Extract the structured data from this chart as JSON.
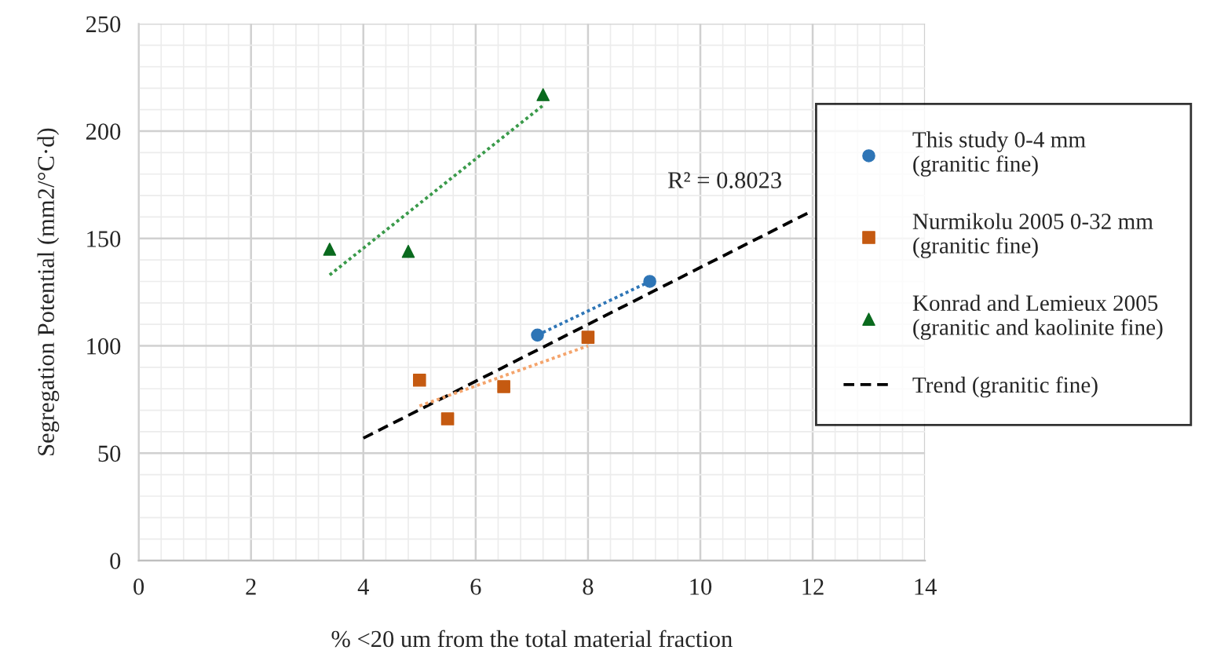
{
  "chart_data": {
    "type": "scatter",
    "xlabel": "% <20 um from the total material fraction",
    "ylabel": "Segregation Potential (mm2/°C·d)",
    "xlim": [
      0,
      14
    ],
    "xticks": [
      0,
      2,
      4,
      6,
      8,
      10,
      12,
      14
    ],
    "ylim": [
      0,
      250
    ],
    "yticks": [
      0,
      50,
      100,
      150,
      200,
      250
    ],
    "grid": true,
    "legend": "right",
    "series": [
      {
        "name": "This study 0-4 mm\n(granitic fine)",
        "marker": "circle",
        "color": "#2e75b6",
        "x": [
          7.1,
          9.1
        ],
        "values": [
          105,
          130
        ]
      },
      {
        "name": "Nurmikolu 2005 0-32 mm\n(granitic fine)",
        "marker": "square",
        "color": "#c55a11",
        "x": [
          5.0,
          5.5,
          6.5,
          8.0
        ],
        "values": [
          84,
          66,
          81,
          104
        ]
      },
      {
        "name": "Konrad and Lemieux 2005\n(granitic and kaolinite fine)",
        "marker": "triangle",
        "color": "#0a6a1e",
        "x": [
          3.4,
          4.8,
          7.2
        ],
        "values": [
          145,
          144,
          217
        ]
      },
      {
        "name": "Trend (granitic fine)",
        "type": "line",
        "line_style": "dashed",
        "color": "#000000",
        "x": [
          4,
          12
        ],
        "values": [
          57,
          163
        ]
      },
      {
        "type": "line",
        "line_style": "dotted",
        "color": "#2e75b6",
        "x": [
          7.1,
          9.1
        ],
        "values": [
          105,
          130
        ]
      },
      {
        "type": "line",
        "line_style": "dotted",
        "color": "#f4a46c",
        "x": [
          5.0,
          8.0
        ],
        "values": [
          72,
          100
        ]
      },
      {
        "type": "line",
        "line_style": "dotted",
        "color": "#3a9a4a",
        "x": [
          3.4,
          7.2
        ],
        "values": [
          133,
          212
        ]
      }
    ],
    "annotations": [
      {
        "text": "R² = 0.8023",
        "x": 12,
        "y": 163
      }
    ]
  }
}
